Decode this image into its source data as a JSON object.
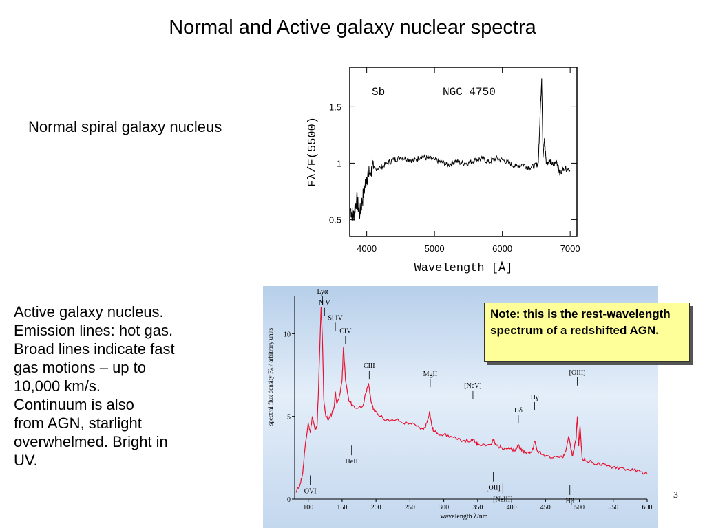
{
  "slide": {
    "title": "Normal and Active galaxy nuclear spectra",
    "normal_label": "Normal spiral galaxy nucleus",
    "agn_text": [
      "Active galaxy nucleus.",
      "Emission lines: hot gas.",
      "Broad lines indicate fast",
      "gas motions – up to",
      "10,000 km/s.",
      "Continuum is also",
      "from AGN, starlight",
      "overwhelmed.  Bright in",
      "UV."
    ],
    "note": "Note: this is the rest-wavelength spectrum of a redshifted AGN.",
    "page_number": "3"
  },
  "chart_data": [
    {
      "type": "line",
      "title": "",
      "annotations": [
        "Sb",
        "NGC 4750"
      ],
      "xlabel": "Wavelength [Å]",
      "ylabel": "Fλ/F(5500)",
      "xlim": [
        3750,
        7100
      ],
      "ylim": [
        0.35,
        1.85
      ],
      "xticks": [
        4000,
        5000,
        6000,
        7000
      ],
      "yticks": [
        0.5,
        1,
        1.5
      ],
      "ytick_labels": [
        "0.5",
        "1",
        "1.5"
      ],
      "grid": false,
      "series": [
        {
          "values_x": [
            3760,
            3800,
            3850,
            3900,
            3950,
            4000,
            4050,
            4100,
            4200,
            4300,
            4400,
            4500,
            4600,
            4700,
            4800,
            4900,
            5000,
            5100,
            5200,
            5300,
            5400,
            5500,
            5600,
            5700,
            5800,
            5900,
            6000,
            6100,
            6200,
            6300,
            6400,
            6500,
            6530,
            6560,
            6580,
            6600,
            6620,
            6650,
            6700,
            6750,
            6800,
            6850,
            6900,
            7000
          ],
          "values_y": [
            0.6,
            0.52,
            0.68,
            0.55,
            0.72,
            0.88,
            0.92,
            0.95,
            0.96,
            1.0,
            1.03,
            1.05,
            1.04,
            1.02,
            1.06,
            1.04,
            1.03,
            1.01,
            0.98,
            1.02,
            1.0,
            1.0,
            1.03,
            1.04,
            1.01,
            1.04,
            1.03,
            1.0,
            0.97,
            0.99,
            0.96,
            0.98,
            1.0,
            1.48,
            1.75,
            1.05,
            1.22,
            1.0,
            1.02,
            0.98,
            1.02,
            0.9,
            0.96,
            0.94
          ]
        }
      ]
    },
    {
      "type": "line",
      "title": "",
      "xlabel": "wavelength λ/nm",
      "ylabel": "spectral flux density Fλ / arbitrary units",
      "xlim": [
        80,
        600
      ],
      "ylim": [
        0,
        12.3
      ],
      "xticks": [
        100,
        150,
        200,
        250,
        300,
        350,
        400,
        450,
        500,
        550,
        600
      ],
      "yticks": [
        0,
        5,
        10
      ],
      "grid": false,
      "line_color": "#e8102f",
      "background_color": "#cfe0f3",
      "series": [
        {
          "values_x": [
            82,
            88,
            92,
            95,
            100,
            103,
            106,
            110,
            113,
            115,
            117,
            119,
            121,
            123,
            126,
            130,
            135,
            138,
            140,
            142,
            145,
            150,
            152,
            155,
            160,
            165,
            170,
            180,
            186,
            189,
            192,
            196,
            200,
            210,
            220,
            230,
            240,
            250,
            260,
            270,
            275,
            279,
            282,
            285,
            290,
            300,
            310,
            320,
            330,
            340,
            343,
            347,
            350,
            360,
            370,
            373,
            376,
            380,
            386,
            390,
            395,
            400,
            405,
            410,
            415,
            420,
            425,
            430,
            434,
            438,
            445,
            455,
            465,
            475,
            480,
            484,
            487,
            490,
            495,
            497,
            499,
            501,
            504,
            510,
            520,
            530,
            540,
            550,
            560,
            570,
            580,
            590,
            600
          ],
          "values_y": [
            0.4,
            0.9,
            1.6,
            3.0,
            4.6,
            4.0,
            5.0,
            4.2,
            4.4,
            6.5,
            9.0,
            11.6,
            9.5,
            6.0,
            5.0,
            4.8,
            5.2,
            5.5,
            6.5,
            5.8,
            6.0,
            7.2,
            9.2,
            7.2,
            5.9,
            5.7,
            5.5,
            5.6,
            6.5,
            7.0,
            6.1,
            5.4,
            5.3,
            4.9,
            4.7,
            4.8,
            4.6,
            4.6,
            4.4,
            4.2,
            4.6,
            5.3,
            4.5,
            4.1,
            4.0,
            3.9,
            3.8,
            3.6,
            3.55,
            3.5,
            3.6,
            3.4,
            3.35,
            3.3,
            3.3,
            3.6,
            3.3,
            3.2,
            3.1,
            3.1,
            3.05,
            3.0,
            2.9,
            3.3,
            2.9,
            2.85,
            2.8,
            2.9,
            3.5,
            2.9,
            2.7,
            2.6,
            2.6,
            2.5,
            2.9,
            3.8,
            3.2,
            2.6,
            3.6,
            5.0,
            3.2,
            4.4,
            2.5,
            2.3,
            2.2,
            2.1,
            2.0,
            1.95,
            1.9,
            1.8,
            1.75,
            1.65,
            1.55
          ]
        }
      ],
      "line_labels": [
        {
          "text": "Lyα",
          "x": 121,
          "y": 11.6
        },
        {
          "text": "N V",
          "x": 124,
          "y": 10.9
        },
        {
          "text": "Si IV",
          "x": 140,
          "y": 10.0
        },
        {
          "text": "CIV",
          "x": 155,
          "y": 9.2
        },
        {
          "text": "CIII",
          "x": 190,
          "y": 7.1
        },
        {
          "text": "MgII",
          "x": 280,
          "y": 6.6
        },
        {
          "text": "[NeV]",
          "x": 343,
          "y": 5.9
        },
        {
          "text": "Hγ",
          "x": 434,
          "y": 5.2
        },
        {
          "text": "Hδ",
          "x": 410,
          "y": 4.4
        },
        {
          "text": "[OIII]",
          "x": 497,
          "y": 6.7
        },
        {
          "text": "HeII",
          "x": 164,
          "y": 3.4
        },
        {
          "text": "OVI",
          "x": 103,
          "y": 1.6
        },
        {
          "text": "[OII]",
          "x": 373,
          "y": 1.8
        },
        {
          "text": "[NeIII]",
          "x": 387,
          "y": 1.1
        },
        {
          "text": "Hβ",
          "x": 486,
          "y": 1.0
        }
      ]
    }
  ]
}
